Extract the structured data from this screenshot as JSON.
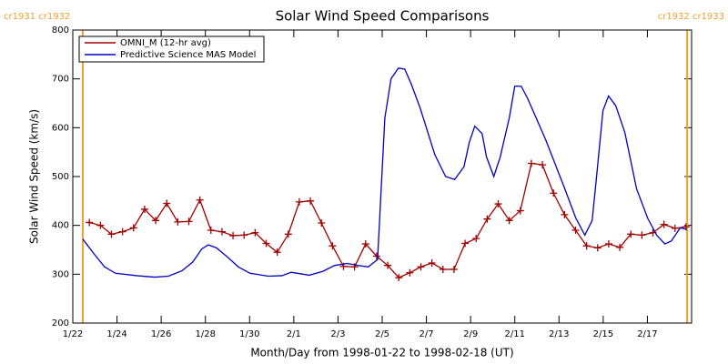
{
  "chart_data": {
    "type": "line",
    "title": "Solar Wind Speed Comparisons",
    "x_label": "Month/Day from 1998-01-22 to 1998-02-18 (UT)",
    "y_label": "Solar Wind Speed (km/s)",
    "xlim": [
      0,
      28
    ],
    "xticks": [
      {
        "value": 0,
        "label": "1/22"
      },
      {
        "value": 2,
        "label": "1/24"
      },
      {
        "value": 4,
        "label": "1/26"
      },
      {
        "value": 6,
        "label": "1/28"
      },
      {
        "value": 8,
        "label": "1/30"
      },
      {
        "value": 10,
        "label": "2/1"
      },
      {
        "value": 12,
        "label": "2/3"
      },
      {
        "value": 14,
        "label": "2/5"
      },
      {
        "value": 16,
        "label": "2/7"
      },
      {
        "value": 18,
        "label": "2/9"
      },
      {
        "value": 20,
        "label": "2/11"
      },
      {
        "value": 22,
        "label": "2/13"
      },
      {
        "value": 24,
        "label": "2/15"
      },
      {
        "value": 26,
        "label": "2/17"
      }
    ],
    "ylim": [
      200,
      800
    ],
    "yticks": [
      200,
      300,
      400,
      500,
      600,
      700,
      800
    ],
    "legend_position": "upper left",
    "carrington_lines": {
      "color": "#f0a030",
      "lines": [
        {
          "x": 0.45,
          "label": "cr1931 cr1932"
        },
        {
          "x": 27.8,
          "label": "cr1932 cr1933"
        }
      ]
    },
    "series": [
      {
        "name": "OMNI_M (12-hr avg)",
        "color": "#a00000",
        "markers": true,
        "x": [
          0.75,
          1.25,
          1.75,
          2.25,
          2.75,
          3.25,
          3.75,
          4.25,
          4.75,
          5.25,
          5.75,
          6.25,
          6.75,
          7.25,
          7.75,
          8.25,
          8.75,
          9.25,
          9.75,
          10.25,
          10.75,
          11.25,
          11.75,
          12.25,
          12.75,
          13.25,
          13.75,
          14.25,
          14.75,
          15.25,
          15.75,
          16.25,
          16.75,
          17.25,
          17.75,
          18.25,
          18.75,
          19.25,
          19.75,
          20.25,
          20.75,
          21.25,
          21.75,
          22.25,
          22.75,
          23.25,
          23.75,
          24.25,
          24.75,
          25.25,
          25.75,
          26.25,
          26.75,
          27.25,
          27.75
        ],
        "values": [
          406,
          400,
          382,
          387,
          395,
          433,
          410,
          445,
          407,
          408,
          452,
          390,
          387,
          379,
          380,
          385,
          363,
          345,
          382,
          448,
          450,
          405,
          358,
          316,
          315,
          362,
          337,
          318,
          293,
          303,
          315,
          323,
          310,
          310,
          363,
          373,
          413,
          444,
          410,
          430,
          527,
          524,
          466,
          422,
          390,
          358,
          354,
          362,
          355,
          382,
          380,
          385,
          402,
          394,
          397
        ]
      },
      {
        "name": "Predictive Science MAS Model",
        "color": "#0000c0",
        "markers": false,
        "x": [
          0.45,
          0.99,
          1.44,
          1.93,
          2.88,
          3.7,
          4.32,
          4.94,
          5.43,
          5.84,
          6.13,
          6.5,
          7.0,
          7.49,
          8.02,
          8.85,
          9.47,
          9.88,
          10.29,
          10.7,
          11.32,
          11.85,
          12.43,
          12.88,
          13.37,
          13.79,
          14.12,
          14.4,
          14.73,
          15.02,
          15.31,
          15.72,
          16.38,
          16.87,
          17.28,
          17.7,
          17.94,
          18.19,
          18.52,
          18.72,
          19.05,
          19.34,
          19.75,
          20.0,
          20.29,
          20.58,
          21.4,
          22.22,
          22.76,
          23.17,
          23.5,
          23.7,
          23.99,
          24.24,
          24.57,
          24.98,
          25.51,
          26.01,
          26.42,
          26.79,
          27.08,
          27.49,
          27.78
        ],
        "values": [
          372,
          340,
          315,
          302,
          297,
          294,
          296,
          307,
          325,
          352,
          360,
          354,
          335,
          315,
          302,
          296,
          297,
          304,
          301,
          298,
          306,
          318,
          322,
          318,
          315,
          330,
          620,
          700,
          722,
          720,
          690,
          640,
          545,
          500,
          494,
          520,
          570,
          603,
          588,
          540,
          500,
          540,
          620,
          685,
          685,
          660,
          575,
          480,
          415,
          380,
          410,
          500,
          635,
          665,
          645,
          590,
          475,
          415,
          380,
          362,
          368,
          395,
          392
        ]
      }
    ]
  }
}
